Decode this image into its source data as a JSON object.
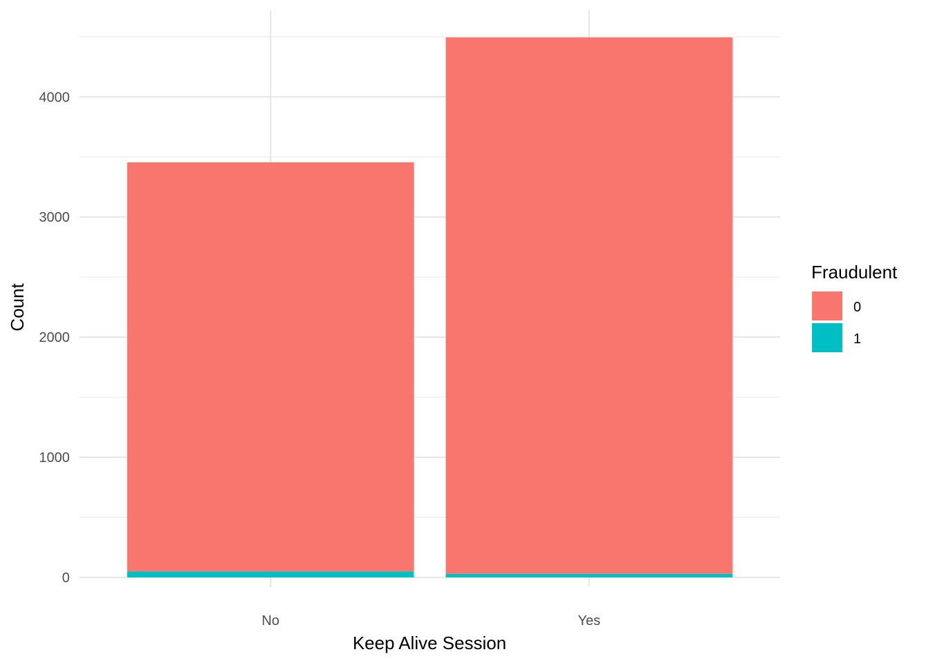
{
  "chart_data": {
    "type": "bar",
    "stacked": true,
    "categories": [
      "No",
      "Yes"
    ],
    "series": [
      {
        "name": "0",
        "values": [
          3405,
          4465
        ],
        "color": "#F8766D"
      },
      {
        "name": "1",
        "values": [
          50,
          30
        ],
        "color": "#00BFC4"
      }
    ],
    "xlabel": "Keep Alive Session",
    "ylabel": "Count",
    "ylim": [
      -80,
      4720
    ],
    "yticks": [
      0,
      1000,
      2000,
      3000,
      4000
    ],
    "yticks_labels": [
      "0",
      "1000",
      "2000",
      "3000",
      "4000"
    ],
    "grid": true,
    "legend": {
      "title": "Fraudulent",
      "position": "right"
    }
  }
}
